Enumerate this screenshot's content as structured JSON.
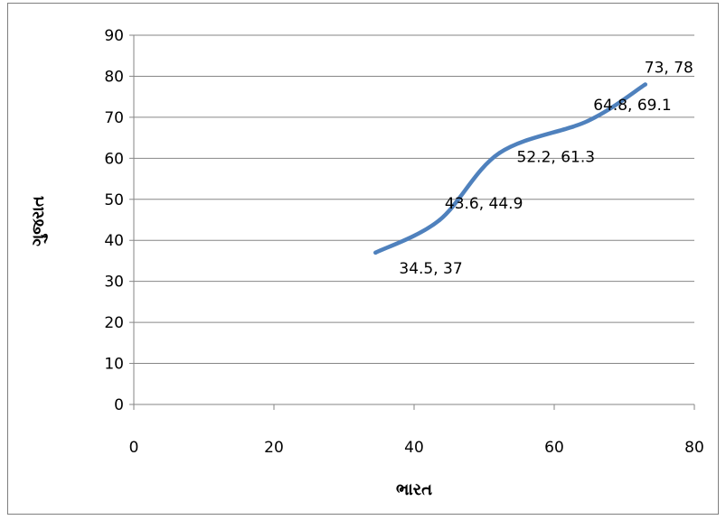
{
  "chart_data": {
    "type": "line",
    "title": "",
    "xlabel": "ભારત",
    "ylabel": "ગુજરાત",
    "xlim": [
      0,
      80
    ],
    "ylim": [
      0,
      90
    ],
    "xticks": [
      0,
      20,
      40,
      60,
      80
    ],
    "yticks": [
      0,
      10,
      20,
      30,
      40,
      50,
      60,
      70,
      80,
      90
    ],
    "grid": "horizontal",
    "smooth": true,
    "series": [
      {
        "color": "#4f81bd",
        "points": [
          {
            "x": 34.5,
            "y": 37,
            "label": "34.5, 37"
          },
          {
            "x": 43.6,
            "y": 44.9,
            "label": "43.6, 44.9"
          },
          {
            "x": 52.2,
            "y": 61.3,
            "label": "52.2, 61.3"
          },
          {
            "x": 64.8,
            "y": 69.1,
            "label": "64.8, 69.1"
          },
          {
            "x": 73,
            "y": 78,
            "label": "73, 78"
          }
        ]
      }
    ]
  }
}
